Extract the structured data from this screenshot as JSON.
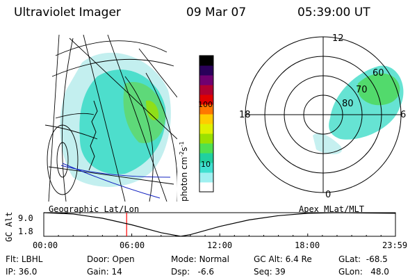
{
  "header": {
    "instrument": "Ultraviolet Imager",
    "date": "09 Mar 07",
    "time": "05:39:00 UT"
  },
  "colorbar": {
    "label": "photon cm",
    "label_exp1": "-2",
    "label_s": "s",
    "label_exp2": "-1",
    "ticks": [
      "100",
      "10"
    ],
    "colors_bottom_to_top": [
      "#ffffff",
      "#a0f0f0",
      "#40e0d0",
      "#20d0a0",
      "#50e050",
      "#9be000",
      "#e0f000",
      "#ffcc00",
      "#ff7700",
      "#e00000",
      "#b00030",
      "#700070",
      "#2a005a",
      "#000000"
    ]
  },
  "polar_plot": {
    "mlt_labels": {
      "top": "12",
      "left": "18",
      "right": "6",
      "bottom": "0"
    },
    "mlat_labels": [
      "60",
      "70",
      "80"
    ]
  },
  "timeline": {
    "left_label": "Geographic Lat/Lon",
    "right_label": "Apex MLat/MLT",
    "yaxis_title": "GC Alt",
    "yticks": [
      "9.0",
      "1.8"
    ],
    "xticks": [
      "00:00",
      "06:00",
      "12:00",
      "18:00",
      "23:59"
    ],
    "current_time_marker": "05:39"
  },
  "chart_data": {
    "type": "line",
    "title": "",
    "xlabel": "",
    "ylabel": "GC Alt",
    "x": [
      "00:00",
      "02:00",
      "04:00",
      "06:00",
      "08:00",
      "09:20",
      "10:00",
      "12:00",
      "14:00",
      "16:00",
      "18:00",
      "20:00",
      "22:00",
      "23:59"
    ],
    "values": [
      9.0,
      8.6,
      7.3,
      5.3,
      2.9,
      1.8,
      2.3,
      4.8,
      6.8,
      8.1,
      8.8,
      9.0,
      8.9,
      8.8
    ],
    "ylim": [
      1.8,
      9.0
    ],
    "xlim": [
      "00:00",
      "23:59"
    ],
    "marker_time": "05:39",
    "marker_color": "#ff0000",
    "grid": false
  },
  "info": {
    "row1": [
      {
        "key": "Flt:",
        "val": "LBHL"
      },
      {
        "key": "Door:",
        "val": "Open"
      },
      {
        "key": "Mode:",
        "val": "Normal"
      },
      {
        "key": "GC Alt:",
        "val": "6.4 Re"
      },
      {
        "key": "GLat:",
        "val": "-68.5"
      }
    ],
    "row2": [
      {
        "key": "IP:",
        "val": "36.0"
      },
      {
        "key": "Gain:",
        "val": "14"
      },
      {
        "key": "Dsp:",
        "val": "-6.6"
      },
      {
        "key": "Seq:",
        "val": "39"
      },
      {
        "key": "GLon:",
        "val": "48.0"
      }
    ]
  }
}
